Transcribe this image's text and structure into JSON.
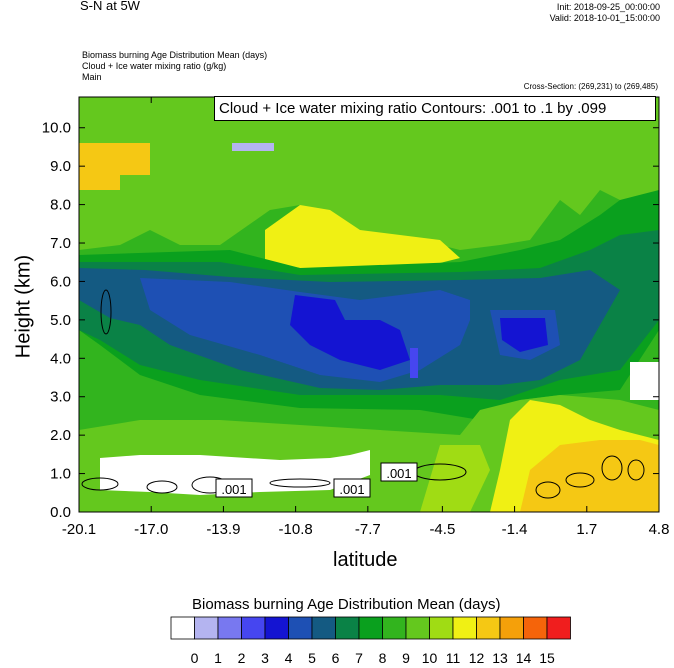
{
  "header": {
    "title": "S-N at 5W",
    "init": "Init: 2018-09-25_00:00:00",
    "valid": "Valid: 2018-10-01_15:00:00",
    "field_lines": [
      "Biomass burning Age Distribution Mean    (days)",
      "Cloud + Ice water mixing ratio    (g/kg)",
      "Main"
    ],
    "cross_section": "Cross-Section: (269,231) to (269,485)"
  },
  "contour_info": "Cloud + Ice water mixing ratio Contours: .001 to .1 by .099",
  "colorbar": {
    "title": "Biomass burning Age Distribution Mean  (days)",
    "colors": [
      "#ffffff",
      "#b4b4f0",
      "#7878f0",
      "#4646f0",
      "#1414d2",
      "#1e50b4",
      "#145a82",
      "#0a8246",
      "#0aa01e",
      "#32b41e",
      "#64c81e",
      "#a0dc14",
      "#f0f014",
      "#f5c814",
      "#f5a00a",
      "#f5640a",
      "#f01e1e",
      "#ff0000"
    ],
    "labels": [
      "0",
      "1",
      "2",
      "3",
      "4",
      "5",
      "6",
      "7",
      "8",
      "9",
      "10",
      "11",
      "12",
      "13",
      "14",
      "15"
    ]
  },
  "chart_data": {
    "type": "heatmap",
    "xlabel": "latitude",
    "ylabel": "Height (km)",
    "xlim": [
      -20.1,
      4.8
    ],
    "ylim": [
      0.0,
      10.8
    ],
    "x_ticks": [
      "-20.1",
      "-17.0",
      "-13.9",
      "-10.8",
      "-7.7",
      "-4.5",
      "-1.4",
      "1.7",
      "4.8"
    ],
    "y_ticks": [
      "0.0",
      "1.0",
      "2.0",
      "3.0",
      "4.0",
      "5.0",
      "6.0",
      "7.0",
      "8.0",
      "9.0",
      "10.0"
    ],
    "contour_labels": [
      ".001",
      ".001",
      ".001"
    ],
    "age_regions_days": [
      {
        "region": "upper troposphere 7-10.8 km",
        "value": 10
      },
      {
        "region": "elevated plume near 9 km, south edge",
        "value": 13
      },
      {
        "region": "mid-level core 3.5-6 km",
        "value": 5
      },
      {
        "region": "maximum near -5 latitude, 4.5 km",
        "value": 4
      },
      {
        "region": "boundary layer north of -1.4",
        "value": 13
      }
    ]
  }
}
